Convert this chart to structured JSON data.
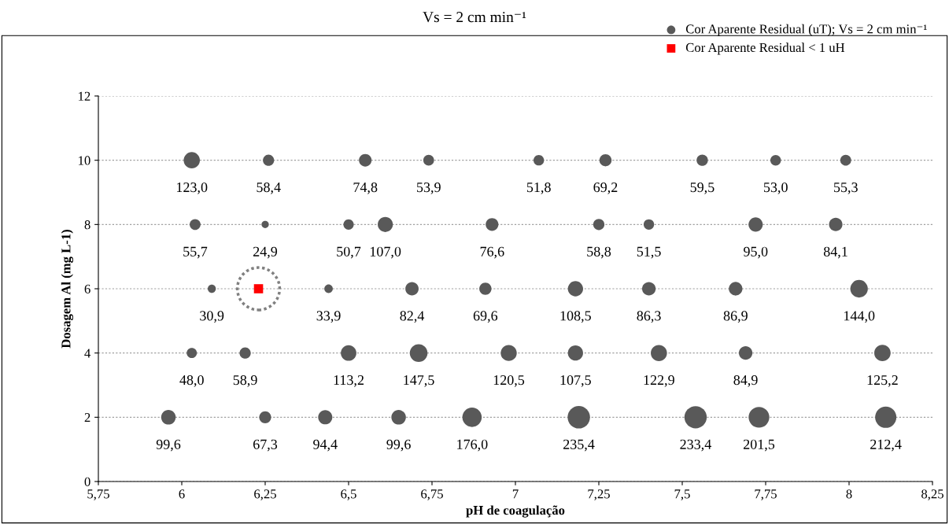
{
  "chart_data": {
    "type": "bubble",
    "title": "Vs = 2 cm min⁻¹",
    "xlabel": "pH de coagulação",
    "ylabel": "Dosagem Al (mg L-1)",
    "xlim": [
      5.75,
      8.25
    ],
    "xticks": [
      {
        "value": 5.75,
        "label": "5,75"
      },
      6,
      {
        "value": 6.25,
        "label": "6,25"
      },
      {
        "value": 6.5,
        "label": "6,5"
      },
      {
        "value": 6.75,
        "label": "6,75"
      },
      7,
      {
        "value": 7.25,
        "label": "7,25"
      },
      {
        "value": 7.5,
        "label": "7,5"
      },
      {
        "value": 7.75,
        "label": "7,75"
      },
      8,
      {
        "value": 8.25,
        "label": "8,25"
      }
    ],
    "ylim": [
      0,
      12
    ],
    "yticks": [
      0,
      2,
      4,
      6,
      8,
      10,
      12
    ],
    "grid": "y",
    "legend": "top right",
    "series": [
      {
        "name": "Cor Aparente Residual (uT); Vs = 2 cm min⁻¹",
        "color": "#595959",
        "marker": "circle",
        "x": [
          6.03,
          6.26,
          6.55,
          6.74,
          7.07,
          7.27,
          7.56,
          7.78,
          7.99,
          6.04,
          6.25,
          6.5,
          6.61,
          6.93,
          7.25,
          7.4,
          7.72,
          7.96,
          6.09,
          6.44,
          6.69,
          6.91,
          7.18,
          7.4,
          7.66,
          8.03,
          6.03,
          6.19,
          6.5,
          6.71,
          6.98,
          7.18,
          7.43,
          7.69,
          8.1,
          5.96,
          6.25,
          6.43,
          6.65,
          6.87,
          7.19,
          7.54,
          7.73,
          8.11
        ],
        "values": [
          10,
          10,
          10,
          10,
          10,
          10,
          10,
          10,
          10,
          8,
          8,
          8,
          8,
          8,
          8,
          8,
          8,
          8,
          6,
          6,
          6,
          6,
          6,
          6,
          6,
          6,
          4,
          4,
          4,
          4,
          4,
          4,
          4,
          4,
          4,
          2,
          2,
          2,
          2,
          2,
          2,
          2,
          2,
          2
        ],
        "sizes": [
          0.523,
          0.248,
          0.318,
          0.229,
          0.22,
          0.294,
          0.253,
          0.225,
          0.235,
          0.237,
          0.106,
          0.215,
          0.455,
          0.325,
          0.25,
          0.219,
          0.404,
          0.357,
          0.131,
          0.144,
          0.35,
          0.296,
          0.461,
          0.367,
          0.369,
          0.612,
          0.204,
          0.25,
          0.481,
          0.627,
          0.512,
          0.457,
          0.522,
          0.361,
          0.532,
          0.423,
          0.286,
          0.401,
          0.423,
          0.748,
          1,
          0.992,
          0.856,
          0.902
        ]
      },
      {
        "name": "Cor Aparente Residual < 1 uH",
        "type": "scatter",
        "color": "#ff0000",
        "marker": "square",
        "x": [
          6.23
        ],
        "values": [
          6
        ]
      }
    ],
    "annotations": [
      {
        "text": "123,0",
        "x": 6.03,
        "y": 10
      },
      {
        "text": "58,4",
        "x": 6.26,
        "y": 10
      },
      {
        "text": "74,8",
        "x": 6.55,
        "y": 10
      },
      {
        "text": "53,9",
        "x": 6.74,
        "y": 10
      },
      {
        "text": "51,8",
        "x": 7.07,
        "y": 10
      },
      {
        "text": "69,2",
        "x": 7.27,
        "y": 10
      },
      {
        "text": "59,5",
        "x": 7.56,
        "y": 10
      },
      {
        "text": "53,0",
        "x": 7.78,
        "y": 10
      },
      {
        "text": "55,3",
        "x": 7.99,
        "y": 10
      },
      {
        "text": "55,7",
        "x": 6.04,
        "y": 8
      },
      {
        "text": "24,9",
        "x": 6.25,
        "y": 8
      },
      {
        "text": "50,7",
        "x": 6.5,
        "y": 8
      },
      {
        "text": "107,0",
        "x": 6.61,
        "y": 8
      },
      {
        "text": "76,6",
        "x": 6.93,
        "y": 8
      },
      {
        "text": "58,8",
        "x": 7.25,
        "y": 8
      },
      {
        "text": "51,5",
        "x": 7.4,
        "y": 8
      },
      {
        "text": "95,0",
        "x": 7.72,
        "y": 8
      },
      {
        "text": "84,1",
        "x": 7.96,
        "y": 8
      },
      {
        "text": "30,9",
        "x": 6.09,
        "y": 6
      },
      {
        "text": "33,9",
        "x": 6.44,
        "y": 6
      },
      {
        "text": "82,4",
        "x": 6.69,
        "y": 6
      },
      {
        "text": "69,6",
        "x": 6.91,
        "y": 6
      },
      {
        "text": "108,5",
        "x": 7.18,
        "y": 6
      },
      {
        "text": "86,3",
        "x": 7.4,
        "y": 6
      },
      {
        "text": "86,9",
        "x": 7.66,
        "y": 6
      },
      {
        "text": "144,0",
        "x": 8.03,
        "y": 6
      },
      {
        "text": "48,0",
        "x": 6.03,
        "y": 4
      },
      {
        "text": "58,9",
        "x": 6.19,
        "y": 4
      },
      {
        "text": "113,2",
        "x": 6.5,
        "y": 4
      },
      {
        "text": "147,5",
        "x": 6.71,
        "y": 4
      },
      {
        "text": "120,5",
        "x": 6.98,
        "y": 4
      },
      {
        "text": "107,5",
        "x": 7.18,
        "y": 4
      },
      {
        "text": "122,9",
        "x": 7.43,
        "y": 4
      },
      {
        "text": "84,9",
        "x": 7.69,
        "y": 4
      },
      {
        "text": "125,2",
        "x": 8.1,
        "y": 4
      },
      {
        "text": "99,6",
        "x": 5.96,
        "y": 2
      },
      {
        "text": "67,3",
        "x": 6.25,
        "y": 2
      },
      {
        "text": "94,4",
        "x": 6.43,
        "y": 2
      },
      {
        "text": "99,6",
        "x": 6.65,
        "y": 2
      },
      {
        "text": "176,0",
        "x": 6.87,
        "y": 2
      },
      {
        "text": "235,4",
        "x": 7.19,
        "y": 2
      },
      {
        "text": "233,4",
        "x": 7.54,
        "y": 2
      },
      {
        "text": "201,5",
        "x": 7.73,
        "y": 2
      },
      {
        "text": "212,4",
        "x": 8.11,
        "y": 2
      }
    ]
  }
}
